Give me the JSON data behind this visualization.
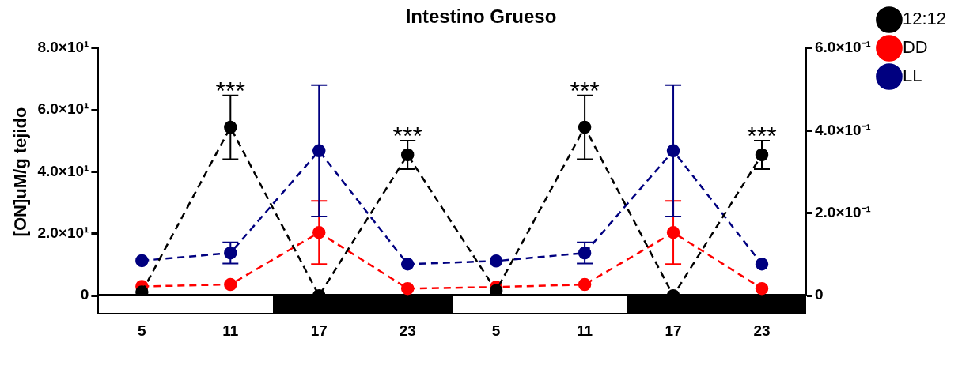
{
  "chart_data": {
    "type": "line",
    "title": "Intestino Grueso",
    "ylabel": "[ON]uM/g tejido",
    "categories": [
      "5",
      "11",
      "17",
      "23",
      "5",
      "11",
      "17",
      "23"
    ],
    "series": [
      {
        "name": "12:12",
        "color": "#000000",
        "values": [
          1.2,
          54.4,
          0,
          45.5,
          1.6,
          54.4,
          0,
          45.5
        ],
        "errors": [
          null,
          10.3,
          null,
          4.6,
          null,
          10.3,
          null,
          4.6
        ],
        "value_labels": [
          null,
          "***",
          null,
          "***",
          null,
          "***",
          null,
          "***"
        ]
      },
      {
        "name": "DD",
        "color": "#ff0000",
        "values": [
          3.0,
          3.6,
          20.4,
          2.3,
          2.8,
          3.6,
          20.4,
          2.3
        ],
        "errors": [
          null,
          null,
          10.2,
          null,
          null,
          null,
          10.2,
          null
        ]
      },
      {
        "name": "LL",
        "color": "#000080",
        "values": [
          11.3,
          13.8,
          46.8,
          10.2,
          11.2,
          13.8,
          46.8,
          10.2
        ],
        "errors": [
          null,
          3.4,
          21.2,
          null,
          null,
          3.4,
          21.2,
          null
        ]
      }
    ],
    "ylim": [
      0,
      80
    ],
    "yticks": [
      0,
      {
        "value": 20,
        "label": "2.0×10¹"
      },
      {
        "value": 40,
        "label": "4.0×10¹"
      },
      {
        "value": 60,
        "label": "6.0×10¹"
      },
      {
        "value": 80,
        "label": "8.0×10¹"
      }
    ],
    "y2lim": [
      0,
      0.6
    ],
    "y2ticks": [
      0,
      {
        "value": 0.2,
        "label": "2.0×10⁻¹"
      },
      {
        "value": 0.4,
        "label": "4.0×10⁻¹"
      },
      {
        "value": 0.6,
        "label": "6.0×10⁻¹"
      }
    ],
    "legend": "top right",
    "grid": false,
    "marker": "circle",
    "line_style": "dashed"
  }
}
